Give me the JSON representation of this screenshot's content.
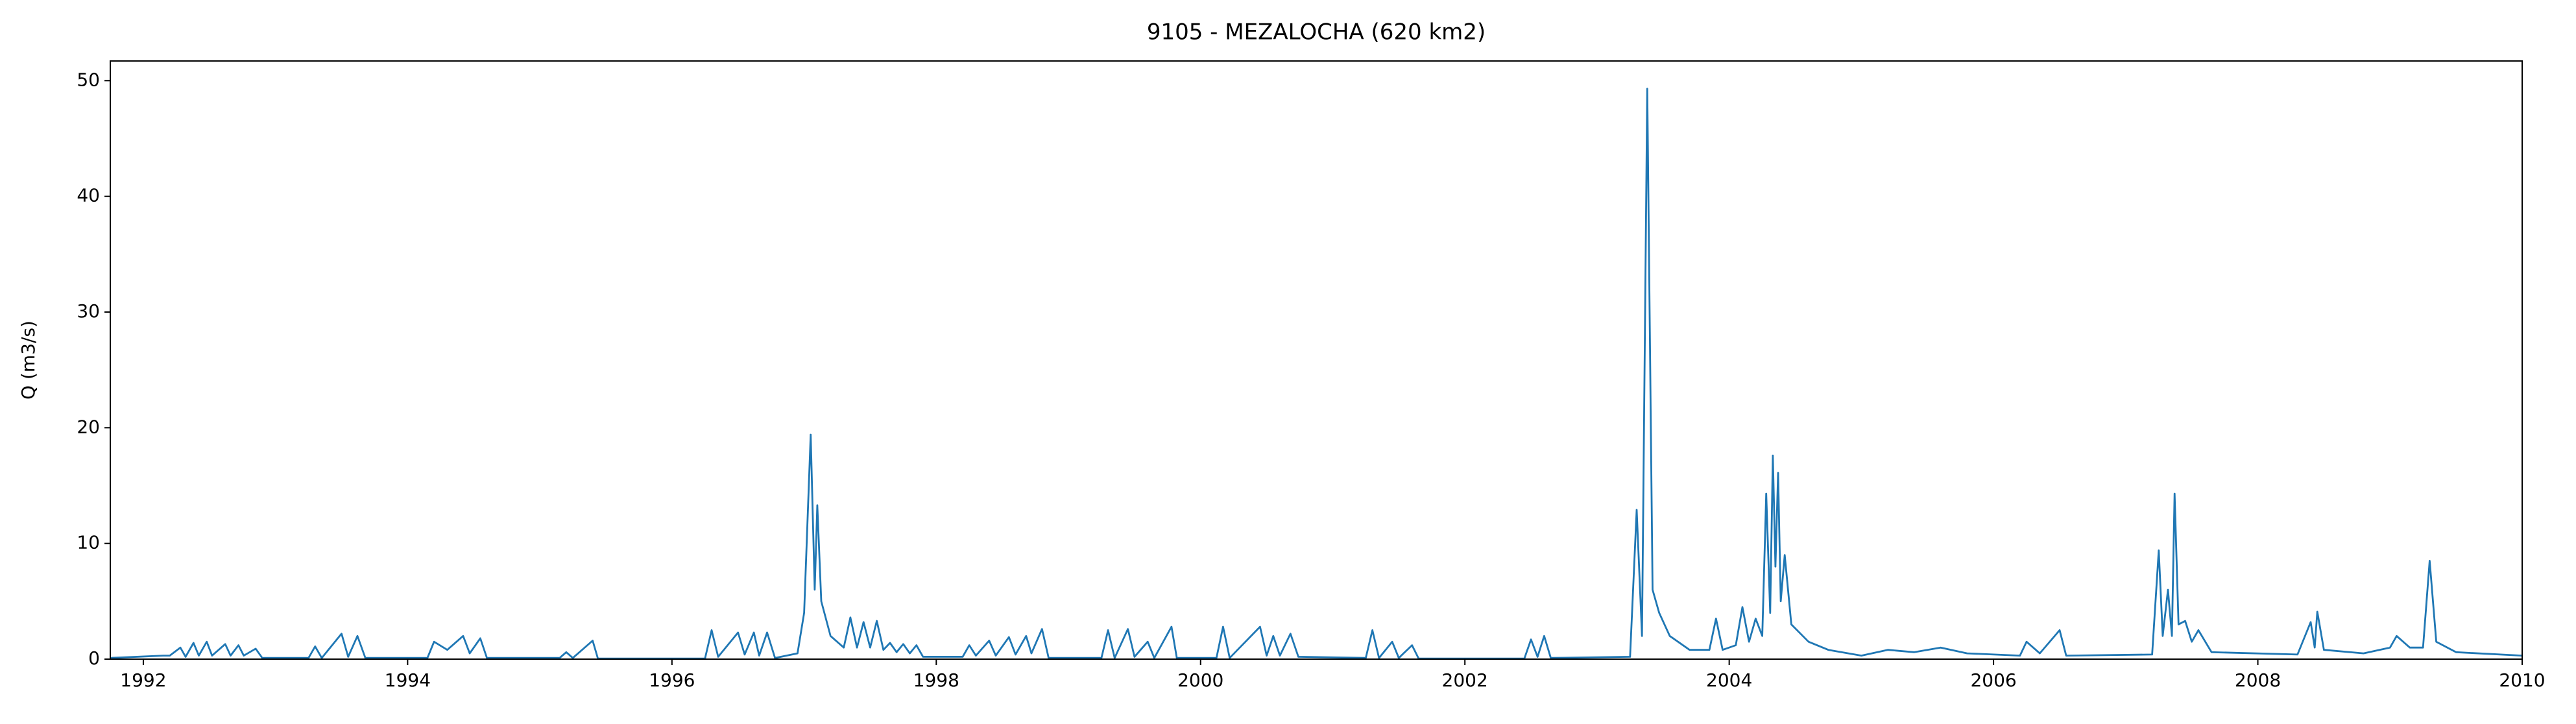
{
  "chart_data": {
    "type": "line",
    "title": "9105 - MEZALOCHA (620 km2)",
    "y_label": "Q (m3/s)",
    "x": [
      1991.75,
      1992.15,
      1992.2,
      1992.28,
      1992.32,
      1992.38,
      1992.42,
      1992.48,
      1992.52,
      1992.62,
      1992.66,
      1992.72,
      1992.76,
      1992.85,
      1992.9,
      1993.25,
      1993.3,
      1993.35,
      1993.5,
      1993.55,
      1993.62,
      1993.68,
      1994.15,
      1994.2,
      1994.3,
      1994.42,
      1994.47,
      1994.55,
      1994.6,
      1995.15,
      1995.2,
      1995.25,
      1995.4,
      1995.44,
      1996.25,
      1996.3,
      1996.35,
      1996.5,
      1996.55,
      1996.62,
      1996.66,
      1996.72,
      1996.78,
      1996.95,
      1997.0,
      1997.05,
      1997.08,
      1997.1,
      1997.13,
      1997.2,
      1997.3,
      1997.35,
      1997.4,
      1997.45,
      1997.5,
      1997.55,
      1997.6,
      1997.65,
      1997.7,
      1997.75,
      1997.8,
      1997.85,
      1997.9,
      1998.2,
      1998.25,
      1998.3,
      1998.4,
      1998.45,
      1998.55,
      1998.6,
      1998.68,
      1998.72,
      1998.8,
      1998.85,
      1999.25,
      1999.3,
      1999.35,
      1999.45,
      1999.5,
      1999.6,
      1999.65,
      1999.78,
      1999.82,
      2000.12,
      2000.17,
      2000.22,
      2000.45,
      2000.5,
      2000.55,
      2000.6,
      2000.68,
      2000.74,
      2001.25,
      2001.3,
      2001.35,
      2001.45,
      2001.5,
      2001.6,
      2001.65,
      2002.45,
      2002.5,
      2002.55,
      2002.6,
      2002.65,
      2003.25,
      2003.3,
      2003.34,
      2003.38,
      2003.42,
      2003.47,
      2003.55,
      2003.7,
      2003.85,
      2003.9,
      2003.95,
      2004.05,
      2004.1,
      2004.15,
      2004.2,
      2004.25,
      2004.28,
      2004.31,
      2004.33,
      2004.35,
      2004.37,
      2004.39,
      2004.42,
      2004.47,
      2004.6,
      2004.75,
      2005.0,
      2005.2,
      2005.4,
      2005.6,
      2005.8,
      2006.2,
      2006.25,
      2006.35,
      2006.5,
      2006.55,
      2007.2,
      2007.25,
      2007.28,
      2007.32,
      2007.35,
      2007.37,
      2007.4,
      2007.45,
      2007.5,
      2007.55,
      2007.65,
      2008.3,
      2008.4,
      2008.43,
      2008.45,
      2008.5,
      2008.8,
      2009.0,
      2009.05,
      2009.15,
      2009.25,
      2009.3,
      2009.35,
      2009.5,
      2010.0
    ],
    "series": [
      {
        "name": "Q",
        "color": "#1f77b4",
        "values": [
          0.1,
          0.3,
          0.3,
          1.0,
          0.2,
          1.4,
          0.3,
          1.5,
          0.3,
          1.3,
          0.3,
          1.2,
          0.3,
          0.9,
          0.1,
          0.1,
          1.1,
          0.1,
          2.2,
          0.2,
          2.0,
          0.1,
          0.1,
          1.5,
          0.8,
          2.0,
          0.5,
          1.8,
          0.1,
          0.1,
          0.6,
          0.1,
          1.6,
          0.05,
          0.05,
          2.5,
          0.2,
          2.3,
          0.4,
          2.3,
          0.3,
          2.3,
          0.1,
          0.5,
          4.0,
          19.4,
          6.0,
          13.3,
          5,
          2,
          1.0,
          3.6,
          1.0,
          3.2,
          1.0,
          3.3,
          0.8,
          1.4,
          0.6,
          1.3,
          0.5,
          1.2,
          0.2,
          0.2,
          1.2,
          0.3,
          1.6,
          0.3,
          1.9,
          0.4,
          2.0,
          0.5,
          2.6,
          0.1,
          0.1,
          2.5,
          0.1,
          2.6,
          0.2,
          1.5,
          0.1,
          2.8,
          0.1,
          0.1,
          2.8,
          0.1,
          2.8,
          0.3,
          2.0,
          0.3,
          2.2,
          0.2,
          0.1,
          2.5,
          0.1,
          1.5,
          0.1,
          1.2,
          0.05,
          0.05,
          1.7,
          0.2,
          2.0,
          0.1,
          0.2,
          12.9,
          2,
          49.3,
          6,
          4,
          2,
          0.8,
          0.8,
          3.5,
          0.8,
          1.2,
          4.5,
          1.5,
          3.5,
          2,
          14.3,
          4,
          17.6,
          8,
          16.1,
          5,
          9,
          3,
          1.5,
          0.8,
          0.3,
          0.8,
          0.6,
          1.0,
          0.5,
          0.3,
          1.5,
          0.5,
          2.5,
          0.3,
          0.4,
          9.4,
          2,
          6,
          2,
          14.3,
          3,
          3.3,
          1.5,
          2.5,
          0.6,
          0.4,
          3.2,
          1,
          4.1,
          0.8,
          0.5,
          1,
          2.0,
          1.0,
          1.0,
          8.5,
          1.5,
          0.6,
          0.3
        ]
      }
    ],
    "xlim": [
      1991.75,
      2010.0
    ],
    "xticks": [
      1992,
      1994,
      1996,
      1998,
      2000,
      2002,
      2004,
      2006,
      2008,
      2010
    ],
    "ylim": [
      0,
      51.7
    ],
    "yticks": [
      0,
      10,
      20,
      30,
      40,
      50
    ],
    "grid": false
  }
}
